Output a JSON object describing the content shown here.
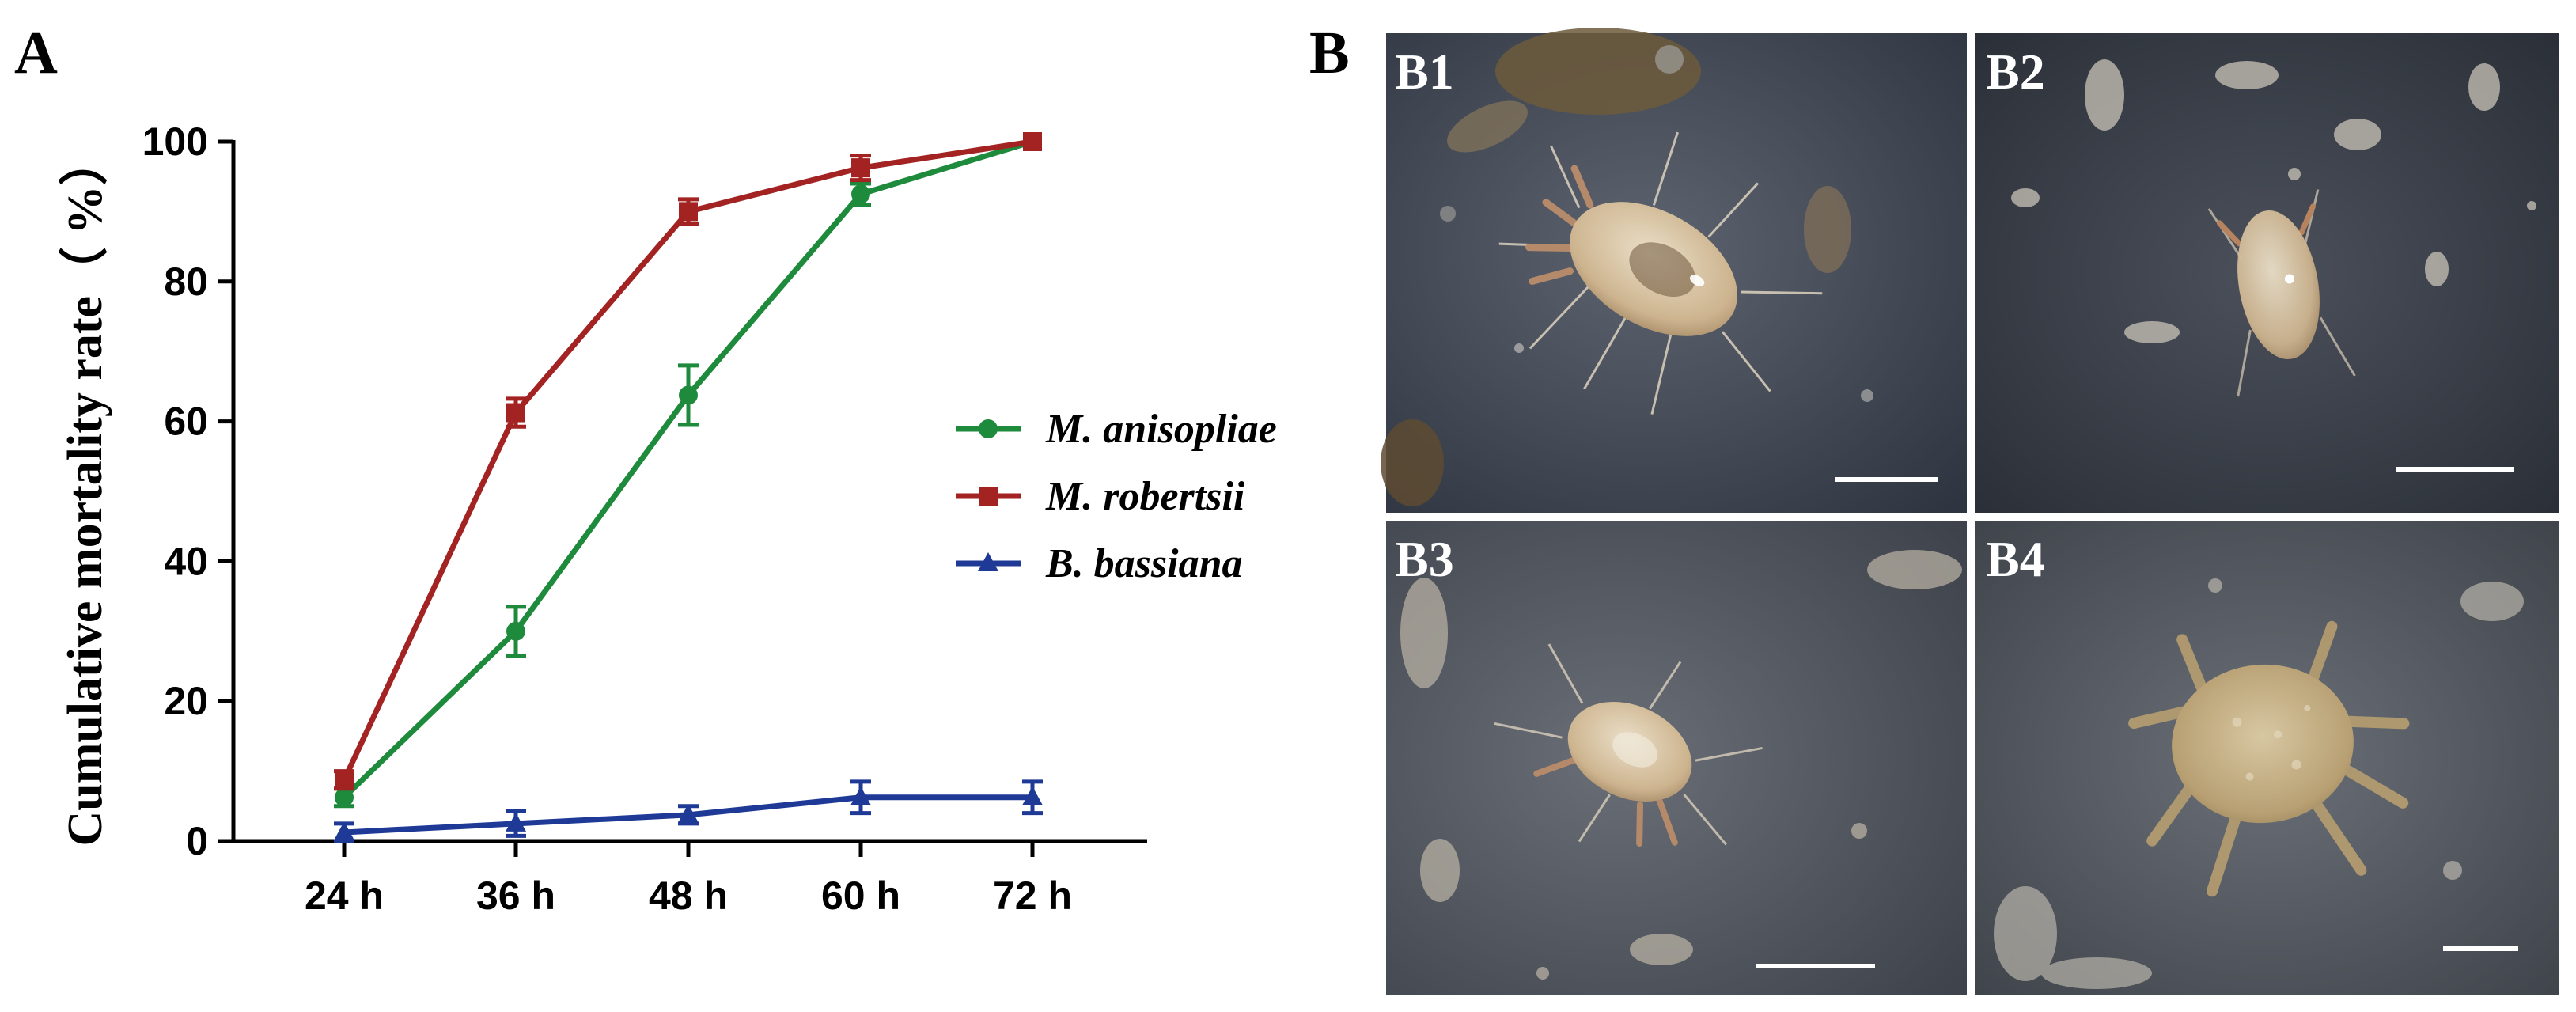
{
  "panels": {
    "a_label": "A",
    "b_label": "B"
  },
  "chart_data": {
    "type": "line",
    "ylabel": "Cumulative mortality rate（ %）",
    "xlabel": "",
    "categories": [
      "24 h",
      "36 h",
      "48 h",
      "60 h",
      "72 h"
    ],
    "ylim": [
      0,
      100
    ],
    "yticks": [
      0,
      20,
      40,
      60,
      80,
      100
    ],
    "grid": false,
    "legend_position": "right",
    "series": [
      {
        "name": "M. anisopliae",
        "color": "#1e8a3c",
        "marker": "circle",
        "values": [
          6.25,
          30,
          63.75,
          92.5,
          100
        ],
        "errors": [
          1.25,
          3.5,
          4.25,
          1.5,
          0
        ]
      },
      {
        "name": "M. robertsii",
        "color": "#a32222",
        "marker": "square",
        "values": [
          8.75,
          61.25,
          90,
          96.25,
          100
        ],
        "errors": [
          1.25,
          2.0,
          1.75,
          1.75,
          0
        ]
      },
      {
        "name": "B. bassiana",
        "color": "#1f3a96",
        "marker": "triangle",
        "values": [
          1.25,
          2.5,
          3.75,
          6.25,
          6.25
        ],
        "errors": [
          1.25,
          1.75,
          1.25,
          2.25,
          2.25
        ]
      }
    ]
  },
  "micrographs": [
    {
      "label": "B1",
      "icon": "mite-micrograph"
    },
    {
      "label": "B2",
      "icon": "mite-micrograph"
    },
    {
      "label": "B3",
      "icon": "mite-micrograph"
    },
    {
      "label": "B4",
      "icon": "mite-micrograph"
    }
  ]
}
